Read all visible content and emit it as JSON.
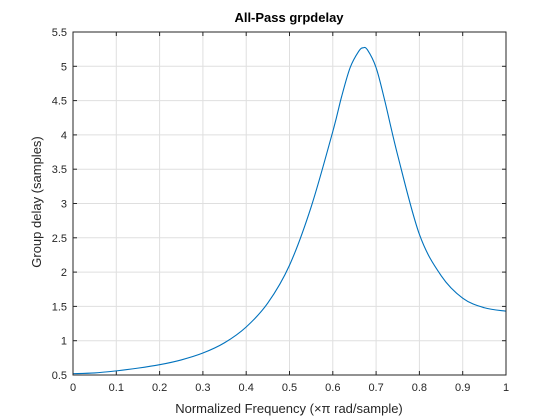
{
  "chart_data": {
    "type": "line",
    "title": "All-Pass grpdelay",
    "xlabel": "Normalized Frequency (×π rad/sample)",
    "ylabel": "Group delay (samples)",
    "xlim": [
      0,
      1
    ],
    "ylim": [
      0.5,
      5.5
    ],
    "grid": true,
    "xticks": [
      "0",
      "0.1",
      "0.2",
      "0.3",
      "0.4",
      "0.5",
      "0.6",
      "0.7",
      "0.8",
      "0.9",
      "1"
    ],
    "yticks": [
      "0.5",
      "1",
      "1.5",
      "2",
      "2.5",
      "3",
      "3.5",
      "4",
      "4.5",
      "5",
      "5.5"
    ],
    "series": [
      {
        "color": "#0072bd",
        "x": [
          0,
          0.05,
          0.1,
          0.15,
          0.2,
          0.25,
          0.3,
          0.35,
          0.4,
          0.45,
          0.5,
          0.55,
          0.6,
          0.62,
          0.64,
          0.66,
          0.67,
          0.68,
          0.7,
          0.72,
          0.75,
          0.8,
          0.85,
          0.9,
          0.95,
          1.0
        ],
        "y": [
          0.52,
          0.53,
          0.56,
          0.6,
          0.65,
          0.72,
          0.82,
          0.97,
          1.2,
          1.55,
          2.1,
          2.95,
          4.05,
          4.55,
          4.98,
          5.22,
          5.27,
          5.24,
          4.98,
          4.5,
          3.7,
          2.55,
          1.95,
          1.62,
          1.48,
          1.43
        ]
      }
    ]
  }
}
